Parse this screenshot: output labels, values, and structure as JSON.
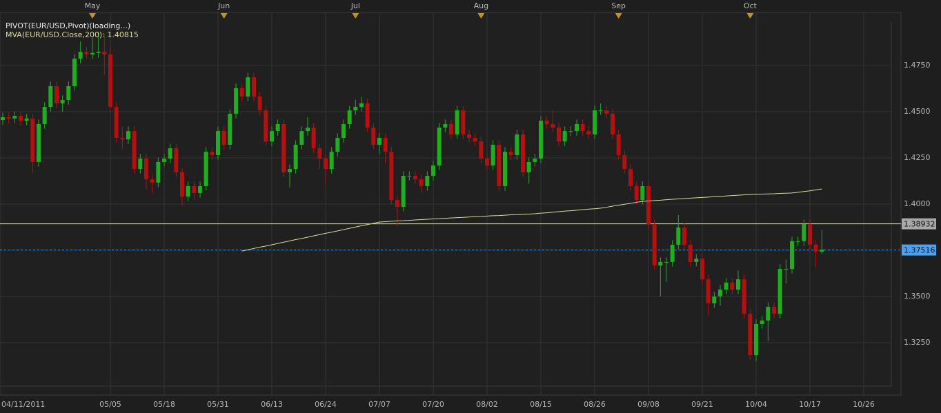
{
  "chart_data": {
    "type": "candlestick",
    "categories": [
      "04/11/2011",
      null,
      null,
      null,
      null,
      null,
      null,
      null,
      null,
      null,
      null,
      null,
      null,
      null,
      null,
      null,
      null,
      null,
      "05/05",
      null,
      null,
      null,
      null,
      null,
      null,
      null,
      null,
      "05/18",
      null,
      null,
      null,
      null,
      null,
      null,
      null,
      null,
      "05/31",
      null,
      null,
      null,
      null,
      null,
      null,
      null,
      null,
      "06/13",
      null,
      null,
      null,
      null,
      null,
      null,
      null,
      null,
      "06/24",
      null,
      null,
      null,
      null,
      null,
      null,
      null,
      null,
      "07/07",
      null,
      null,
      null,
      null,
      null,
      null,
      null,
      null,
      "07/20",
      null,
      null,
      null,
      null,
      null,
      null,
      null,
      null,
      "08/02",
      null,
      null,
      null,
      null,
      null,
      null,
      null,
      null,
      "08/15",
      null,
      null,
      null,
      null,
      null,
      null,
      null,
      null,
      "08/26",
      null,
      null,
      null,
      null,
      null,
      null,
      null,
      null,
      "09/08",
      null,
      null,
      null,
      null,
      null,
      null,
      null,
      null,
      "09/21",
      null,
      null,
      null,
      null,
      null,
      null,
      null,
      null,
      "10/04",
      null,
      null,
      null,
      null,
      null,
      null,
      null,
      null,
      "10/17",
      null,
      null,
      null,
      null,
      null,
      null,
      null,
      null,
      "10/26"
    ],
    "month_labels": [
      null,
      null,
      null,
      null,
      null,
      null,
      null,
      null,
      null,
      null,
      null,
      null,
      null,
      null,
      null,
      "May",
      null,
      null,
      null,
      null,
      null,
      null,
      null,
      null,
      null,
      null,
      null,
      null,
      null,
      null,
      null,
      null,
      null,
      null,
      null,
      null,
      null,
      "Jun",
      null,
      null,
      null,
      null,
      null,
      null,
      null,
      null,
      null,
      null,
      null,
      null,
      null,
      null,
      null,
      null,
      null,
      null,
      null,
      null,
      null,
      "Jul",
      null,
      null,
      null,
      null,
      null,
      null,
      null,
      null,
      null,
      null,
      null,
      null,
      null,
      null,
      null,
      null,
      null,
      null,
      null,
      null,
      "Aug",
      null,
      null,
      null,
      null,
      null,
      null,
      null,
      null,
      null,
      null,
      null,
      null,
      null,
      null,
      null,
      null,
      null,
      null,
      null,
      null,
      null,
      null,
      "Sep",
      null,
      null,
      null,
      null,
      null,
      null,
      null,
      null,
      null,
      null,
      null,
      null,
      null,
      null,
      null,
      null,
      null,
      null,
      null,
      null,
      null,
      "Oct",
      null,
      null,
      null,
      null,
      null,
      null,
      null,
      null,
      null,
      null,
      null,
      null,
      null,
      null,
      null,
      null,
      null,
      null,
      null
    ],
    "open": [
      1.4455,
      1.447,
      1.4463,
      1.4477,
      1.4451,
      1.4463,
      1.4228,
      1.4433,
      1.4526,
      1.4638,
      1.4545,
      1.4563,
      1.4638,
      1.4787,
      1.4824,
      1.481,
      1.4818,
      1.4824,
      1.481,
      1.4526,
      1.4358,
      1.435,
      1.4395,
      1.419,
      1.4246,
      1.4134,
      1.4116,
      1.4228,
      1.4246,
      1.4302,
      1.4172,
      1.4041,
      1.4097,
      1.406,
      1.4097,
      1.4283,
      1.4265,
      1.4395,
      1.4321,
      1.4489,
      1.4627,
      1.4582,
      1.4686,
      1.4582,
      1.4507,
      1.4339,
      1.4395,
      1.4433,
      1.4172,
      1.419,
      1.4321,
      1.4395,
      1.4414,
      1.4302,
      1.4246,
      1.419,
      1.4283,
      1.4358,
      1.4433,
      1.4507,
      1.4526,
      1.4545,
      1.4414,
      1.4321,
      1.4358,
      1.4283,
      1.4022,
      1.3985,
      1.4153,
      1.4153,
      1.4134,
      1.4097,
      1.4153,
      1.4209,
      1.4414,
      1.4433,
      1.4377,
      1.4507,
      1.4377,
      1.4358,
      1.4339,
      1.4246,
      1.4209,
      1.4321,
      1.4097,
      1.4283,
      1.4265,
      1.4377,
      1.4172,
      1.4228,
      1.4246,
      1.4451,
      1.4433,
      1.4414,
      1.4339,
      1.4395,
      1.4395,
      1.4433,
      1.4395,
      1.4377,
      1.4507,
      1.4507,
      1.4489,
      1.4377,
      1.4265,
      1.419,
      1.4097,
      1.4022,
      1.4097,
      1.3892,
      1.3668,
      1.3687,
      1.3687,
      1.378,
      1.3873,
      1.378,
      1.3687,
      1.3705,
      1.3593,
      1.3463,
      1.35,
      1.3537,
      1.3575,
      1.3537,
      1.3593,
      1.3407,
      1.3183,
      1.3351,
      1.337,
      1.3444,
      1.3407,
      1.3649,
      1.3649,
      1.3799,
      1.3799,
      1.3892,
      1.378,
      1.3743,
      null,
      null,
      null,
      null,
      null,
      null,
      null
    ],
    "high": [
      1.4495,
      1.4495,
      1.4502,
      1.4502,
      1.4488,
      1.4488,
      1.4458,
      1.4551,
      1.4663,
      1.4663,
      1.4588,
      1.4663,
      1.4812,
      1.488,
      1.4849,
      1.49,
      1.493,
      1.492,
      1.4849,
      1.4551,
      1.442,
      1.442,
      1.442,
      1.4271,
      1.4271,
      1.4159,
      1.4253,
      1.4271,
      1.4327,
      1.4327,
      1.4197,
      1.4122,
      1.4122,
      1.4122,
      1.4308,
      1.4308,
      1.442,
      1.442,
      1.4514,
      1.4652,
      1.4652,
      1.4711,
      1.4711,
      1.4607,
      1.4532,
      1.442,
      1.4458,
      1.4458,
      1.4215,
      1.4346,
      1.442,
      1.447,
      1.4439,
      1.4327,
      1.4271,
      1.4308,
      1.4383,
      1.4458,
      1.4532,
      1.4565,
      1.458,
      1.457,
      1.4439,
      1.4383,
      1.4383,
      1.4308,
      1.4047,
      1.4178,
      1.4178,
      1.4178,
      1.4159,
      1.4178,
      1.4234,
      1.4439,
      1.4458,
      1.4458,
      1.4532,
      1.4532,
      1.4402,
      1.4383,
      1.4364,
      1.4271,
      1.4346,
      1.4346,
      1.4308,
      1.4308,
      1.4402,
      1.4402,
      1.4253,
      1.4271,
      1.4476,
      1.4476,
      1.451,
      1.4439,
      1.442,
      1.442,
      1.4458,
      1.4458,
      1.442,
      1.4532,
      1.4545,
      1.4532,
      1.4514,
      1.4402,
      1.429,
      1.4215,
      1.4122,
      1.4122,
      1.4122,
      1.3917,
      1.3712,
      1.3712,
      1.3805,
      1.394,
      1.3898,
      1.3805,
      1.373,
      1.373,
      1.3618,
      1.3525,
      1.3562,
      1.36,
      1.36,
      1.364,
      1.3618,
      1.3432,
      1.3376,
      1.3395,
      1.3469,
      1.3469,
      1.3674,
      1.37,
      1.3824,
      1.3824,
      1.3917,
      1.3917,
      1.38,
      1.386,
      null,
      null,
      null,
      null,
      null,
      null,
      null
    ],
    "low": [
      1.443,
      1.4438,
      1.4438,
      1.4426,
      1.4426,
      1.417,
      1.4203,
      1.4408,
      1.4501,
      1.452,
      1.45,
      1.4538,
      1.4613,
      1.4762,
      1.4785,
      1.4785,
      1.4793,
      1.47,
      1.4501,
      1.4333,
      1.43,
      1.4325,
      1.4165,
      1.4165,
      1.408,
      1.406,
      1.4091,
      1.4203,
      1.4221,
      1.4147,
      1.399,
      1.4016,
      1.402,
      1.4035,
      1.4072,
      1.424,
      1.424,
      1.4296,
      1.4296,
      1.4464,
      1.4557,
      1.4557,
      1.4557,
      1.4482,
      1.4314,
      1.4314,
      1.437,
      1.4147,
      1.409,
      1.4165,
      1.4296,
      1.437,
      1.4277,
      1.419,
      1.411,
      1.4165,
      1.4258,
      1.4333,
      1.4408,
      1.4482,
      1.4501,
      1.4389,
      1.4296,
      1.427,
      1.422,
      1.3997,
      1.388,
      1.396,
      1.4128,
      1.4109,
      1.406,
      1.4072,
      1.4128,
      1.4184,
      1.4389,
      1.4352,
      1.4352,
      1.4352,
      1.4333,
      1.4314,
      1.4221,
      1.4184,
      1.4184,
      1.4072,
      1.4072,
      1.424,
      1.424,
      1.4147,
      1.411,
      1.4203,
      1.4221,
      1.4408,
      1.4389,
      1.4314,
      1.4314,
      1.437,
      1.437,
      1.437,
      1.4352,
      1.4352,
      1.4482,
      1.4464,
      1.4352,
      1.424,
      1.4165,
      1.4072,
      1.3997,
      1.3997,
      1.3867,
      1.3643,
      1.35,
      1.358,
      1.3662,
      1.3755,
      1.3755,
      1.3662,
      1.3662,
      1.3568,
      1.34,
      1.3438,
      1.345,
      1.3512,
      1.3512,
      1.3512,
      1.3382,
      1.3158,
      1.315,
      1.3326,
      1.326,
      1.3382,
      1.3382,
      1.357,
      1.3624,
      1.3774,
      1.3774,
      1.3755,
      1.366,
      1.3729,
      null,
      null,
      null,
      null,
      null,
      null,
      null
    ],
    "close": [
      1.447,
      1.4463,
      1.4477,
      1.4451,
      1.4463,
      1.4228,
      1.4433,
      1.4526,
      1.4638,
      1.4545,
      1.4563,
      1.4638,
      1.4787,
      1.4824,
      1.481,
      1.4818,
      1.4824,
      1.481,
      1.4526,
      1.4358,
      1.435,
      1.4395,
      1.419,
      1.4246,
      1.4134,
      1.4116,
      1.4228,
      1.4246,
      1.4302,
      1.4172,
      1.4041,
      1.4097,
      1.406,
      1.4097,
      1.4283,
      1.4265,
      1.4395,
      1.4321,
      1.4489,
      1.4627,
      1.4582,
      1.4686,
      1.4582,
      1.4507,
      1.4339,
      1.4395,
      1.4433,
      1.4172,
      1.419,
      1.4321,
      1.4395,
      1.4414,
      1.4302,
      1.4246,
      1.419,
      1.4283,
      1.4358,
      1.4433,
      1.4507,
      1.4526,
      1.4545,
      1.4414,
      1.4321,
      1.4358,
      1.4283,
      1.4022,
      1.3985,
      1.4153,
      1.4153,
      1.4134,
      1.4097,
      1.4153,
      1.4209,
      1.4414,
      1.4433,
      1.4377,
      1.4507,
      1.4377,
      1.4358,
      1.4339,
      1.4246,
      1.4209,
      1.4321,
      1.4097,
      1.4283,
      1.4265,
      1.4377,
      1.4172,
      1.4228,
      1.4246,
      1.4451,
      1.4433,
      1.4414,
      1.4339,
      1.4395,
      1.4395,
      1.4433,
      1.4395,
      1.4377,
      1.4507,
      1.4507,
      1.4489,
      1.4377,
      1.4265,
      1.419,
      1.4097,
      1.4022,
      1.4097,
      1.3892,
      1.3668,
      1.3687,
      1.3687,
      1.378,
      1.3873,
      1.378,
      1.3687,
      1.3705,
      1.3593,
      1.3463,
      1.35,
      1.3537,
      1.3575,
      1.3537,
      1.3593,
      1.3407,
      1.3183,
      1.3351,
      1.337,
      1.3444,
      1.3407,
      1.3649,
      1.3649,
      1.3799,
      1.3799,
      1.3892,
      1.378,
      1.3743,
      1.3754,
      null,
      null,
      null,
      null,
      null,
      null,
      null
    ],
    "up_color": "#1fae1f",
    "down_color": "#b50f0f",
    "series": [
      {
        "name": "MVA(EUR/USD.Close,200): 1.40815",
        "color": "#dcdc9a",
        "values": [
          null,
          null,
          null,
          null,
          null,
          null,
          null,
          null,
          null,
          null,
          null,
          null,
          null,
          null,
          null,
          null,
          null,
          null,
          null,
          null,
          null,
          null,
          null,
          null,
          null,
          null,
          null,
          null,
          null,
          null,
          null,
          null,
          null,
          null,
          null,
          null,
          null,
          null,
          null,
          null,
          1.3746,
          1.3753,
          1.376,
          1.3767,
          1.3773,
          1.378,
          1.3787,
          1.3794,
          1.3801,
          1.3808,
          1.3814,
          1.3821,
          1.3828,
          1.3835,
          1.3842,
          1.3848,
          1.3855,
          1.3862,
          1.3869,
          1.3876,
          1.3883,
          1.3889,
          1.3896,
          1.3903,
          1.3905,
          1.3907,
          1.3909,
          1.391,
          1.3912,
          1.3914,
          1.3916,
          1.3918,
          1.392,
          1.3921,
          1.3923,
          1.3925,
          1.3927,
          1.3928,
          1.393,
          1.3932,
          1.3933,
          1.3935,
          1.3937,
          1.3938,
          1.394,
          1.3942,
          1.3943,
          1.3945,
          1.3946,
          1.3948,
          1.3951,
          1.3953,
          1.3956,
          1.3959,
          1.3962,
          1.3964,
          1.3967,
          1.397,
          1.3973,
          1.3975,
          1.3978,
          1.3983,
          1.3989,
          1.3994,
          1.3999,
          1.4004,
          1.401,
          1.4015,
          1.4017,
          1.4019,
          1.4021,
          1.4024,
          1.4026,
          1.4028,
          1.403,
          1.4032,
          1.4034,
          1.4036,
          1.4038,
          1.404,
          1.4042,
          1.4044,
          1.4046,
          1.4048,
          1.405,
          1.4052,
          1.4053,
          1.4054,
          1.4055,
          1.4056,
          1.4058,
          1.4059,
          1.406,
          1.4064,
          1.4068,
          1.4072,
          1.4077,
          1.40815,
          null,
          null,
          null,
          null,
          null,
          null,
          null
        ]
      }
    ],
    "reference_lines": [
      {
        "name": "PIVOT(EUR/USD,Pivot)(loading...)",
        "value": 1.38932,
        "color": "#e6e6c8",
        "label_color": "#a8a8a8",
        "style": "solid"
      },
      {
        "value": 1.37516,
        "color": "#3d8fe0",
        "label_color": "#4ca0f0",
        "style": "dashed"
      }
    ],
    "ylim": [
      1.3015,
      1.4985
    ],
    "yticks": [
      {
        "value": 1.325,
        "label": "1.3250"
      },
      {
        "value": 1.35,
        "label": "1.3500"
      },
      {
        "value": 1.375,
        "label": "1.3750"
      },
      {
        "value": 1.4,
        "label": "1.4000"
      },
      {
        "value": 1.425,
        "label": "1.4250"
      },
      {
        "value": 1.45,
        "label": "1.4500"
      },
      {
        "value": 1.475,
        "label": "1.4750"
      }
    ],
    "grid": true
  }
}
